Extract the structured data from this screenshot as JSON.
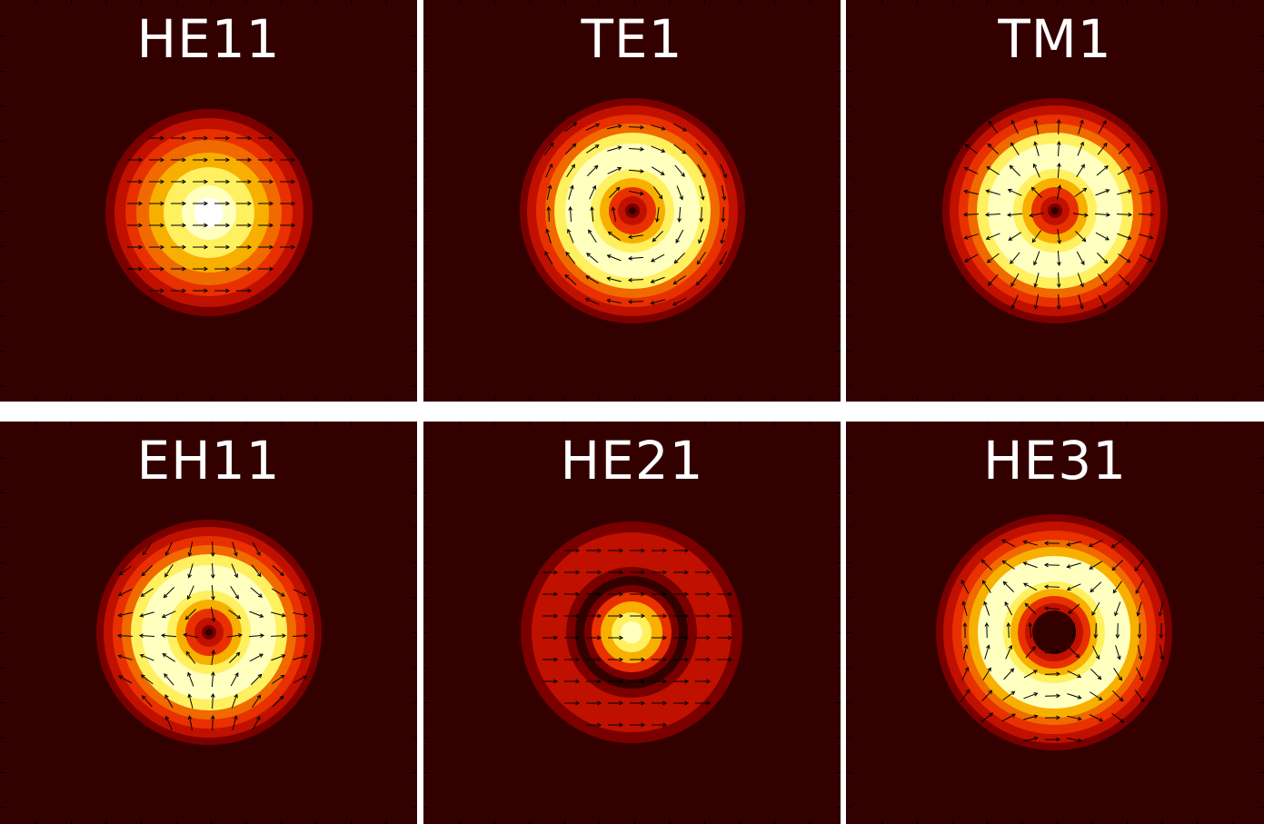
{
  "colors": {
    "background": "#330000",
    "colormap": [
      "#330000",
      "#7a0000",
      "#c01000",
      "#e83000",
      "#f06a00",
      "#f8b000",
      "#fff060",
      "#ffffc0",
      "#ffffff"
    ],
    "arrows": "#000000"
  },
  "panels": [
    {
      "title": "HE11",
      "mode": "HE11",
      "field": "linear-horizontal"
    },
    {
      "title": "TE1",
      "mode": "TE1",
      "field": "azimuthal"
    },
    {
      "title": "TM1",
      "mode": "TM1",
      "field": "radial"
    },
    {
      "title": "EH11",
      "mode": "EH11",
      "field": "hybrid-radial"
    },
    {
      "title": "HE21",
      "mode": "HE21",
      "field": "linear-horizontal"
    },
    {
      "title": "HE31",
      "mode": "HE31",
      "field": "hybrid-azimuthal"
    }
  ]
}
